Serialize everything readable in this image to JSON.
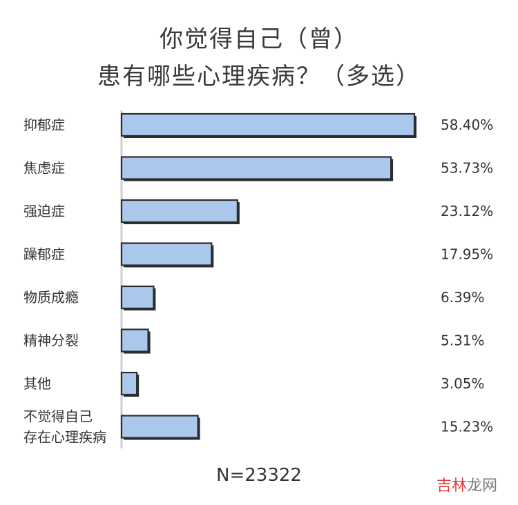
{
  "chart_data": {
    "type": "bar",
    "orientation": "horizontal",
    "title_line1": "你觉得自己（曾）",
    "title_line2": "患有哪些心理疾病？（多选）",
    "categories": [
      "抑郁症",
      "焦虑症",
      "强迫症",
      "躁郁症",
      "物质成瘾",
      "精神分裂",
      "其他",
      "不觉得自己\n存在心理疾病"
    ],
    "values": [
      58.4,
      53.73,
      23.12,
      17.95,
      6.39,
      5.31,
      3.05,
      15.23
    ],
    "value_labels": [
      "58.40%",
      "53.73%",
      "23.12%",
      "17.95%",
      "6.39%",
      "5.31%",
      "3.05%",
      "15.23%"
    ],
    "xlim": [
      0,
      58.4
    ],
    "bar_color": "#a9c8eb",
    "note": "N=23322"
  },
  "watermark": {
    "part1": "吉林",
    "part2": "龙网"
  }
}
